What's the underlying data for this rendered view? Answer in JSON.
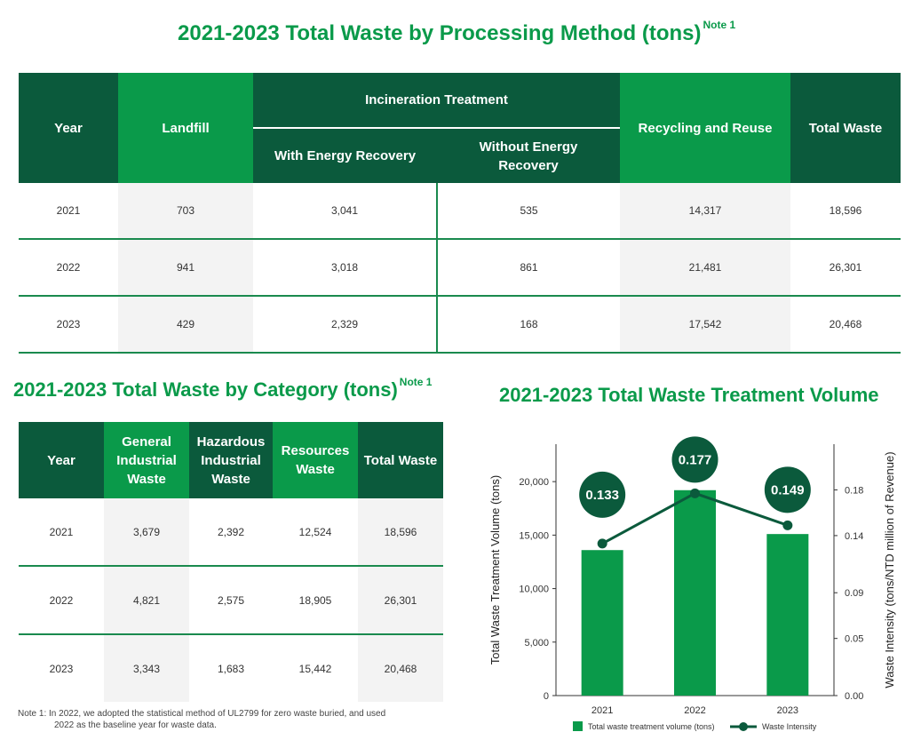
{
  "title1": {
    "text": "2021-2023 Total Waste by Processing Method (tons)",
    "note": "Note 1"
  },
  "table1": {
    "headers": {
      "year": "Year",
      "landfill": "Landfill",
      "incineration": "Incineration Treatment",
      "with_energy": "With Energy Recovery",
      "without_energy": "Without Energy Recovery",
      "recycling": "Recycling and Reuse",
      "total": "Total Waste"
    },
    "rows": [
      {
        "year": "2021",
        "landfill": "703",
        "with_energy": "3,041",
        "without_energy": "535",
        "recycling": "14,317",
        "total": "18,596"
      },
      {
        "year": "2022",
        "landfill": "941",
        "with_energy": "3,018",
        "without_energy": "861",
        "recycling": "21,481",
        "total": "26,301"
      },
      {
        "year": "2023",
        "landfill": "429",
        "with_energy": "2,329",
        "without_energy": "168",
        "recycling": "17,542",
        "total": "20,468"
      }
    ]
  },
  "title2": {
    "text": "2021-2023 Total Waste by Category (tons)",
    "note": "Note 1"
  },
  "table2": {
    "headers": {
      "year": "Year",
      "general": "General Industrial Waste",
      "hazardous": "Hazardous Industrial Waste",
      "resources": "Resources Waste",
      "total": "Total Waste"
    },
    "rows": [
      {
        "year": "2021",
        "general": "3,679",
        "hazardous": "2,392",
        "resources": "12,524",
        "total": "18,596"
      },
      {
        "year": "2022",
        "general": "4,821",
        "hazardous": "2,575",
        "resources": "18,905",
        "total": "26,301"
      },
      {
        "year": "2023",
        "general": "3,343",
        "hazardous": "1,683",
        "resources": "15,442",
        "total": "20,468"
      }
    ]
  },
  "title3": {
    "text": "2021-2023 Total Waste Treatment Volume"
  },
  "note": {
    "line1": "Note 1: In 2022, we adopted the statistical method of UL2799 for zero waste buried, and used",
    "line2": "2022 as the baseline year for waste data."
  },
  "chart_data": {
    "type": "bar",
    "categories": [
      "2021",
      "2022",
      "2023"
    ],
    "series": [
      {
        "name": "Total waste treatment volume (tons)",
        "type": "bar",
        "axis": "left",
        "values": [
          13600,
          19200,
          15100
        ],
        "color": "#0a9a4a"
      },
      {
        "name": "Waste Intensity",
        "type": "line",
        "axis": "right",
        "values": [
          0.133,
          0.177,
          0.149
        ],
        "color": "#0b5a3c"
      }
    ],
    "data_labels": [
      "0.133",
      "0.177",
      "0.149"
    ],
    "ylabel": "Total Waste Treatment Volume (tons)",
    "ylabel_right": "Waste Intensity (tons/NTD million of Revenue)",
    "ylim": [
      0,
      23500
    ],
    "yticks": [
      0,
      5000,
      10000,
      15000,
      20000
    ],
    "ytick_labels": [
      "0",
      "5,000",
      "10,000",
      "15,000",
      "20,000"
    ],
    "ylim_right": [
      0,
      0.22
    ],
    "yticks_right": [
      0,
      0.05,
      0.09,
      0.14,
      0.18
    ],
    "ytick_labels_right": [
      "0.00",
      "0.05",
      "0.09",
      "0.14",
      "0.18"
    ],
    "legend_position": "bottom"
  }
}
